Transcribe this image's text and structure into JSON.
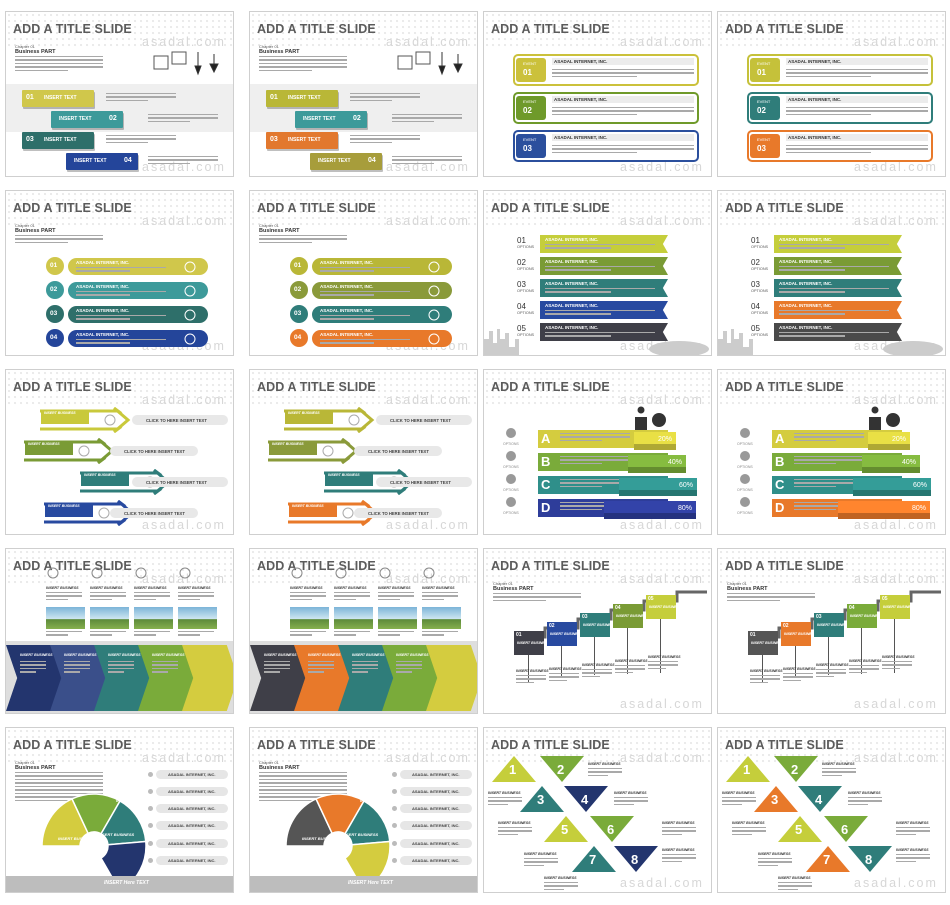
{
  "slide_title": "ADD A TITLE SLIDE",
  "watermark": "asadal.com",
  "chapter": "Chapter 01",
  "business_part": "Business PART",
  "insert_text": "INSERT TEXT",
  "event": "EVENT",
  "options": "OPTIONS",
  "company": "ASADAL INTERNET, INC.",
  "click_here": "CLICK TO HERE INSERT TEXT",
  "click_here_alt": "CLICK TO HERE  INSERT TEXT",
  "insert_business": "INSERT BUSINESS",
  "insert_here_text": "INSERT Here TEXT",
  "nums2": [
    "01",
    "02",
    "03",
    "04",
    "05"
  ],
  "letters": [
    "A",
    "B",
    "C",
    "D"
  ],
  "percents": [
    "20%",
    "40%",
    "60%",
    "80%"
  ],
  "digits": [
    "1",
    "2",
    "3",
    "4",
    "5",
    "6",
    "7",
    "8"
  ],
  "palettes": {
    "A": [
      "#d0c74b",
      "#3d9a9a",
      "#2e6f6a",
      "#24459a"
    ],
    "B": [
      "#b9b737",
      "#3d9a9a",
      "#e2782e",
      "#a79d3b"
    ],
    "C": [
      "#c5ce3b",
      "#7a9b35",
      "#2f7d7a",
      "#284aa0",
      "#3f3f48"
    ],
    "D": [
      "#c5ce3b",
      "#7a9b35",
      "#2f7d7a",
      "#e8792a",
      "#4a4a4a"
    ]
  }
}
